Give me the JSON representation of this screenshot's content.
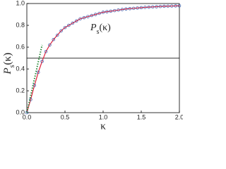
{
  "chart_data": {
    "type": "line",
    "xlabel": "κ",
    "ylabel": [
      "P",
      "s",
      "(κ)"
    ],
    "annotation": [
      "P",
      "s",
      "(κ)"
    ],
    "xlim": [
      0,
      2
    ],
    "ylim": [
      0,
      1
    ],
    "xticks": [
      {
        "value": 0,
        "label": "0.0"
      },
      0.5,
      {
        "value": 1,
        "label": "1.0"
      },
      1.5,
      {
        "value": 2,
        "label": "2.0"
      }
    ],
    "yticks": [
      {
        "value": 0,
        "label": "0.0"
      },
      0.2,
      0.4,
      0.6,
      0.8,
      {
        "value": 1,
        "label": "1.0"
      }
    ],
    "grid": false,
    "hline": {
      "value": 0.5,
      "color": "#000000"
    },
    "series": [
      {
        "color": "#e0203a",
        "marker_color": "#3a5fb0",
        "style": "solid",
        "x": [
          0,
          0.05,
          0.1,
          0.15,
          0.2,
          0.25,
          0.3,
          0.35,
          0.4,
          0.45,
          0.5,
          0.55,
          0.6,
          0.65,
          0.7,
          0.75,
          0.8,
          0.85,
          0.9,
          0.95,
          1,
          1.05,
          1.1,
          1.15,
          1.2,
          1.25,
          1.3,
          1.35,
          1.4,
          1.45,
          1.5,
          1.55,
          1.6,
          1.65,
          1.7,
          1.75,
          1.8,
          1.85,
          1.9,
          1.95,
          2
        ],
        "values": [
          0,
          0.12,
          0.25,
          0.37,
          0.47,
          0.56,
          0.62,
          0.67,
          0.71,
          0.75,
          0.78,
          0.8,
          0.82,
          0.84,
          0.86,
          0.87,
          0.88,
          0.89,
          0.9,
          0.91,
          0.92,
          0.925,
          0.93,
          0.935,
          0.94,
          0.945,
          0.95,
          0.953,
          0.956,
          0.959,
          0.962,
          0.965,
          0.967,
          0.969,
          0.971,
          0.973,
          0.975,
          0.976,
          0.977,
          0.978,
          0.979
        ]
      },
      {
        "color": "#2a8a3a",
        "style": "dotted",
        "x": [
          0,
          0.2
        ],
        "values": [
          0,
          0.62
        ]
      }
    ]
  }
}
